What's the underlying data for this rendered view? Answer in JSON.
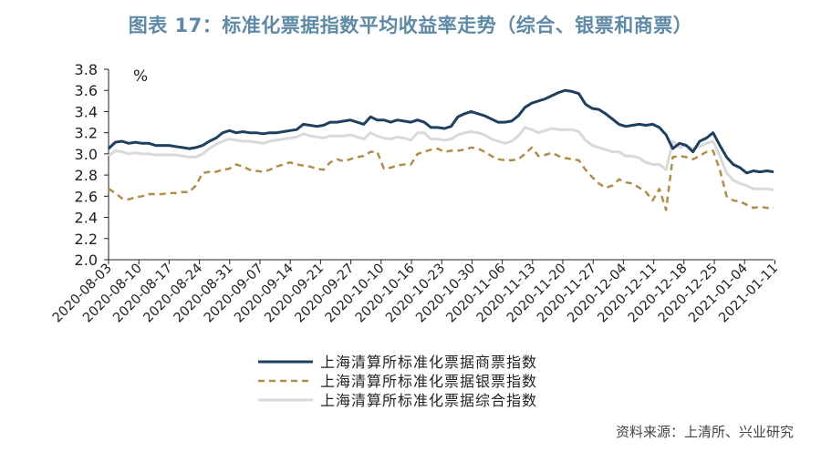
{
  "title": "图表 17：标准化票据指数平均收益率走势（综合、银票和商票）",
  "source": "资料来源：上清所、兴业研究",
  "colors": {
    "title": "#5f8aa6",
    "commercial": "#1f3f5f",
    "bank": "#b08d4a",
    "composite": "#d9d9d9",
    "axis": "#222222"
  },
  "chart_data": {
    "type": "line",
    "ylabel": "%",
    "ylim": [
      2.0,
      3.8
    ],
    "yticks": [
      "3.8",
      "3.6",
      "3.4",
      "3.2",
      "3.0",
      "2.8",
      "2.6",
      "2.4",
      "2.2",
      "2.0"
    ],
    "grid": false,
    "legend_position": "bottom",
    "x_tick_labels": [
      "2020-08-03",
      "2020-08-10",
      "2020-08-17",
      "2020-08-24",
      "2020-08-31",
      "2020-09-07",
      "2020-09-14",
      "2020-09-21",
      "2020-09-27",
      "2020-10-10",
      "2020-10-16",
      "2020-10-23",
      "2020-10-30",
      "2020-11-06",
      "2020-11-13",
      "2020-11-20",
      "2020-11-27",
      "2020-12-04",
      "2020-12-11",
      "2020-12-18",
      "2020-12-25",
      "2021-01-04",
      "2021-01-11"
    ],
    "series": [
      {
        "name": "上海清算所标准化票据商票指数",
        "style": "solid",
        "values": [
          3.05,
          3.11,
          3.12,
          3.1,
          3.11,
          3.1,
          3.1,
          3.08,
          3.08,
          3.08,
          3.07,
          3.06,
          3.05,
          3.06,
          3.08,
          3.12,
          3.15,
          3.2,
          3.22,
          3.2,
          3.21,
          3.2,
          3.2,
          3.19,
          3.2,
          3.2,
          3.21,
          3.22,
          3.23,
          3.28,
          3.27,
          3.26,
          3.27,
          3.3,
          3.3,
          3.31,
          3.32,
          3.3,
          3.28,
          3.35,
          3.32,
          3.32,
          3.3,
          3.32,
          3.31,
          3.3,
          3.32,
          3.3,
          3.25,
          3.25,
          3.24,
          3.26,
          3.35,
          3.38,
          3.4,
          3.38,
          3.36,
          3.33,
          3.3,
          3.3,
          3.31,
          3.36,
          3.44,
          3.48,
          3.5,
          3.52,
          3.55,
          3.58,
          3.6,
          3.59,
          3.57,
          3.47,
          3.43,
          3.42,
          3.38,
          3.33,
          3.28,
          3.26,
          3.27,
          3.28,
          3.27,
          3.28,
          3.25,
          3.18,
          3.05,
          3.1,
          3.08,
          3.02,
          3.12,
          3.15,
          3.2,
          3.08,
          2.97,
          2.9,
          2.87,
          2.82,
          2.84,
          2.83,
          2.84,
          2.83
        ]
      },
      {
        "name": "上海清算所标准化票据银票指数",
        "style": "dashed",
        "values": [
          2.67,
          2.63,
          2.58,
          2.57,
          2.59,
          2.6,
          2.62,
          2.62,
          2.62,
          2.63,
          2.63,
          2.64,
          2.64,
          2.7,
          2.82,
          2.83,
          2.83,
          2.85,
          2.86,
          2.9,
          2.88,
          2.85,
          2.84,
          2.83,
          2.85,
          2.88,
          2.9,
          2.92,
          2.9,
          2.89,
          2.88,
          2.86,
          2.85,
          2.92,
          2.95,
          2.93,
          2.95,
          2.97,
          2.98,
          3.02,
          3.02,
          2.86,
          2.87,
          2.89,
          2.9,
          2.9,
          3.0,
          3.02,
          3.04,
          3.05,
          3.02,
          3.03,
          3.03,
          3.04,
          3.06,
          3.05,
          3.02,
          2.98,
          2.95,
          2.94,
          2.94,
          2.95,
          3.0,
          3.06,
          2.98,
          2.99,
          3.01,
          2.98,
          2.96,
          2.95,
          2.94,
          2.85,
          2.78,
          2.72,
          2.68,
          2.7,
          2.76,
          2.73,
          2.72,
          2.68,
          2.64,
          2.56,
          2.67,
          2.47,
          2.97,
          2.98,
          2.97,
          2.95,
          2.98,
          3.02,
          3.03,
          2.85,
          2.6,
          2.56,
          2.55,
          2.52,
          2.49,
          2.5,
          2.49,
          2.49
        ]
      },
      {
        "name": "上海清算所标准化票据综合指数",
        "style": "solid",
        "values": [
          2.98,
          3.03,
          3.02,
          3.0,
          3.01,
          3.0,
          3.0,
          2.99,
          2.99,
          2.99,
          2.99,
          2.98,
          2.97,
          2.97,
          3.0,
          3.05,
          3.09,
          3.12,
          3.14,
          3.13,
          3.12,
          3.12,
          3.11,
          3.1,
          3.12,
          3.13,
          3.14,
          3.15,
          3.16,
          3.19,
          3.17,
          3.16,
          3.15,
          3.17,
          3.17,
          3.17,
          3.18,
          3.16,
          3.14,
          3.2,
          3.17,
          3.15,
          3.14,
          3.16,
          3.15,
          3.13,
          3.2,
          3.2,
          3.14,
          3.14,
          3.13,
          3.14,
          3.18,
          3.2,
          3.21,
          3.2,
          3.18,
          3.14,
          3.12,
          3.1,
          3.12,
          3.17,
          3.25,
          3.23,
          3.2,
          3.22,
          3.24,
          3.23,
          3.23,
          3.23,
          3.21,
          3.13,
          3.08,
          3.06,
          3.04,
          3.02,
          3.02,
          2.98,
          2.98,
          2.96,
          2.92,
          2.9,
          2.9,
          2.85,
          3.12,
          3.06,
          3.08,
          3.05,
          3.07,
          3.1,
          3.12,
          2.98,
          2.82,
          2.75,
          2.72,
          2.7,
          2.67,
          2.67,
          2.67,
          2.66
        ]
      }
    ]
  }
}
